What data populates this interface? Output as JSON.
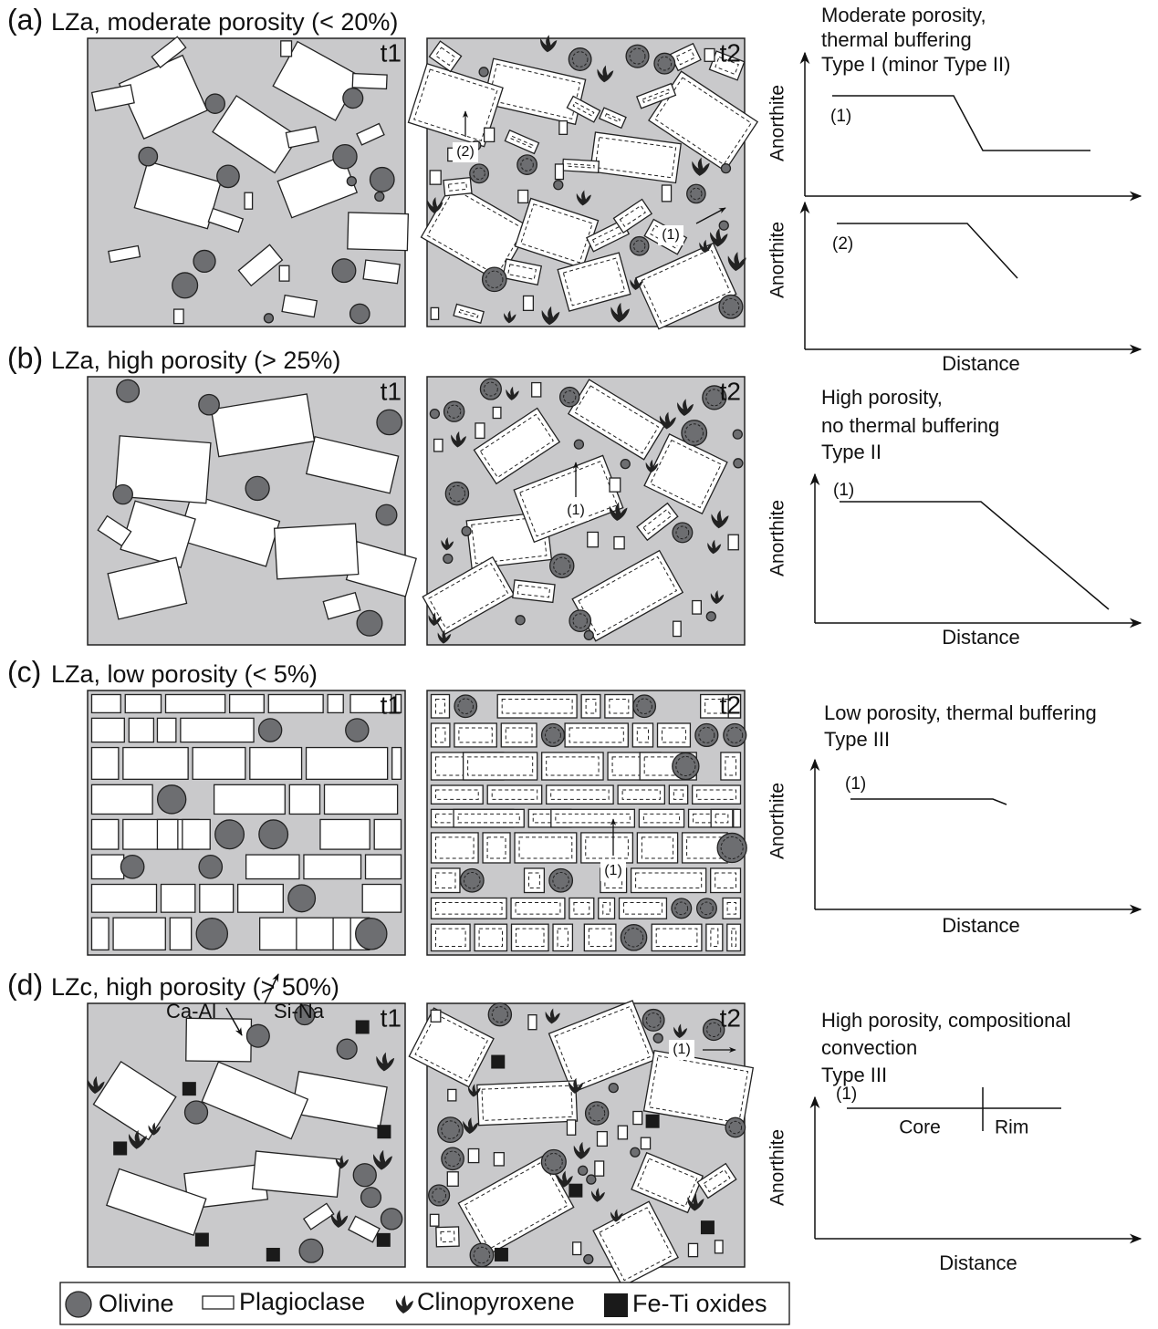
{
  "panels": [
    {
      "label": "(a)",
      "title": "LZa, moderate porosity (< 20%)",
      "t1": "t1",
      "t2": "t2",
      "t2_labels": [
        "(2)",
        "(1)"
      ],
      "graph": {
        "caption": [
          "Moderate porosity,",
          "thermal buffering",
          "Type I (minor Type II)"
        ],
        "y_labels": [
          "Anorthite",
          "Anorthite"
        ],
        "curve_labels": [
          "(1)",
          "(2)"
        ],
        "x_label": "Distance"
      }
    },
    {
      "label": "(b)",
      "title": "LZa, high porosity (> 25%)",
      "t1": "t1",
      "t2": "t2",
      "t2_labels": [
        "(1)"
      ],
      "graph": {
        "caption": [
          "High porosity,",
          "no thermal buffering",
          "Type II"
        ],
        "y_labels": [
          "Anorthite"
        ],
        "curve_labels": [
          "(1)"
        ],
        "x_label": "Distance"
      }
    },
    {
      "label": "(c)",
      "title": "LZa, low porosity (< 5%)",
      "t1": "t1",
      "t2": "t2",
      "t2_labels": [
        "(1)"
      ],
      "graph": {
        "caption": [
          "Low porosity, thermal buffering",
          "Type III"
        ],
        "y_labels": [
          "Anorthite"
        ],
        "curve_labels": [
          "(1)"
        ],
        "x_label": "Distance"
      }
    },
    {
      "label": "(d)",
      "title": "LZc, high porosity (> 50%)",
      "t1": "t1",
      "t2": "t2",
      "t2_labels": [
        "(1)"
      ],
      "flux_labels": [
        "Ca-Al",
        "Si-Na"
      ],
      "graph": {
        "caption": [
          "High porosity, compositional",
          "convection",
          "Type III"
        ],
        "y_labels": [
          "Anorthite"
        ],
        "curve_labels": [
          "(1)"
        ],
        "zone_labels": [
          "Core",
          "Rim"
        ],
        "x_label": "Distance"
      }
    }
  ],
  "legend": [
    "Olivine",
    "Plagioclase",
    "Clinopyroxene",
    "Fe-Ti oxides"
  ]
}
